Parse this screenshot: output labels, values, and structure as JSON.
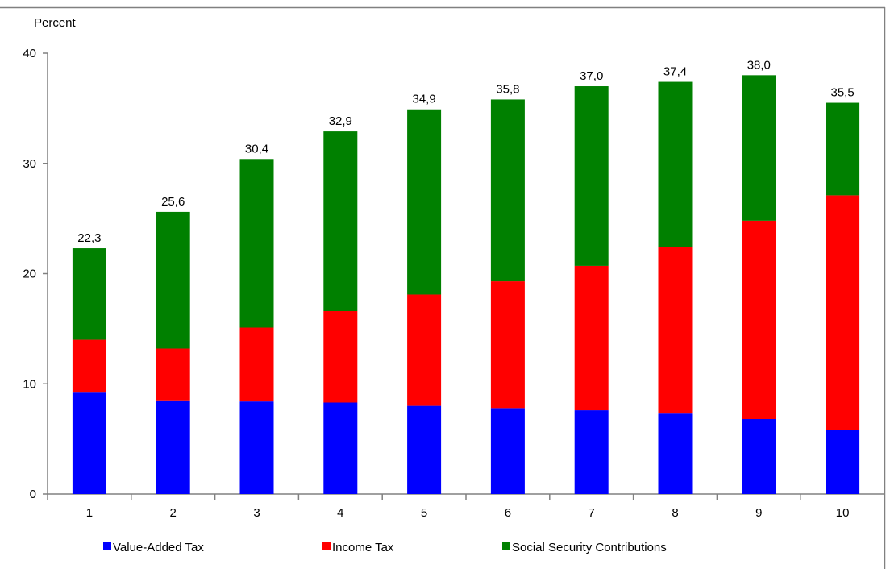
{
  "chart_data": {
    "type": "bar",
    "stacked": true,
    "ylabel": "Percent",
    "xlabel": "",
    "categories": [
      "1",
      "2",
      "3",
      "4",
      "5",
      "6",
      "7",
      "8",
      "9",
      "10"
    ],
    "ylim": [
      0,
      40
    ],
    "yticks": [
      0,
      10,
      20,
      30,
      40
    ],
    "grid": false,
    "legend_position": "bottom",
    "series": [
      {
        "name": "Value-Added Tax",
        "color": "#0000ff",
        "values": [
          9.2,
          8.5,
          8.4,
          8.3,
          8.0,
          7.8,
          7.6,
          7.3,
          6.8,
          5.8
        ]
      },
      {
        "name": "Income Tax",
        "color": "#ff0000",
        "values": [
          4.8,
          4.7,
          6.7,
          8.3,
          10.1,
          11.5,
          13.1,
          15.1,
          18.0,
          21.3
        ]
      },
      {
        "name": "Social Security Contributions",
        "color": "#008000",
        "values": [
          8.3,
          12.4,
          15.3,
          16.3,
          16.8,
          16.5,
          16.3,
          15.0,
          13.2,
          8.4
        ]
      }
    ],
    "totals": [
      "22,3",
      "25,6",
      "30,4",
      "32,9",
      "34,9",
      "35,8",
      "37,0",
      "37,4",
      "38,0",
      "35,5"
    ]
  }
}
